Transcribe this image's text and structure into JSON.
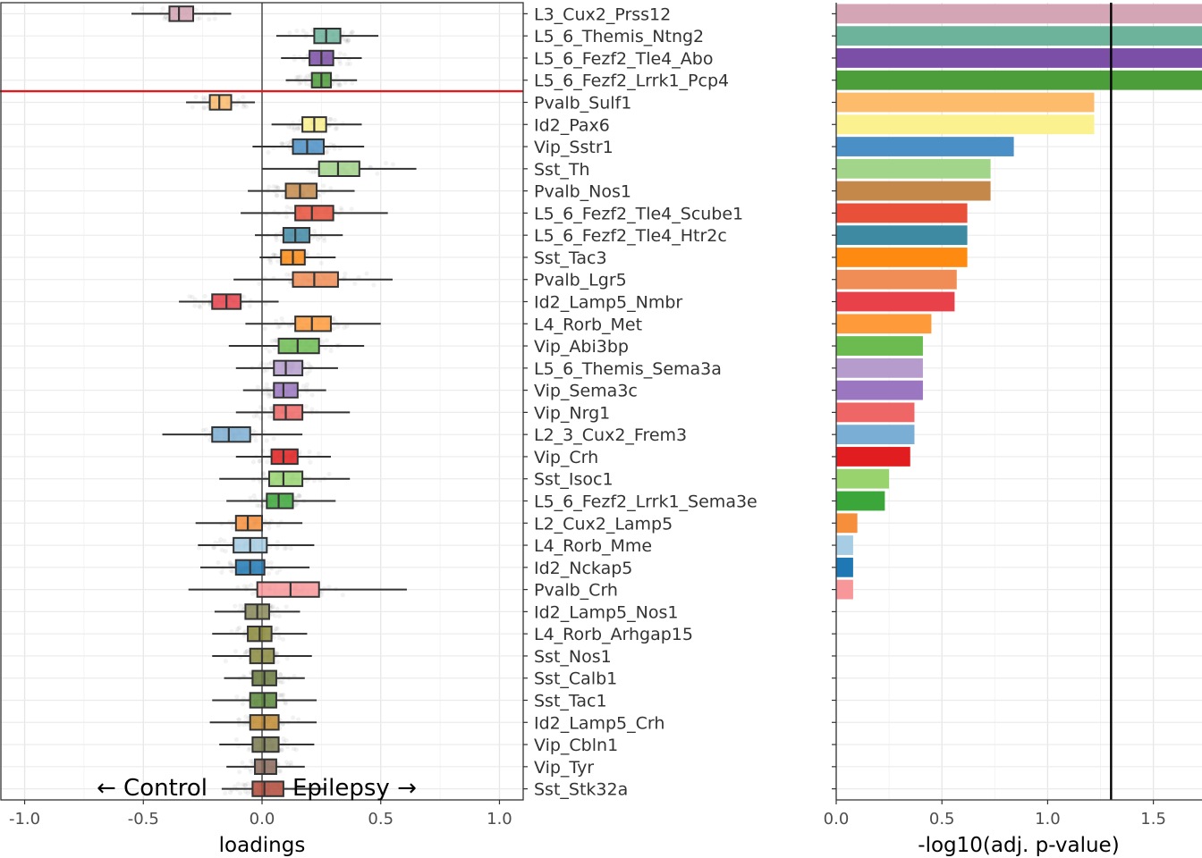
{
  "chart_data": [
    {
      "type": "boxplot",
      "xlabel": "loadings",
      "xlim": [
        -1.1,
        1.1
      ],
      "xticks": [
        -1.0,
        -0.5,
        0.0,
        0.5,
        1.0
      ],
      "xtick_labels": [
        "-1.0",
        "-0.5",
        "0.0",
        "0.5",
        "1.0"
      ],
      "grid": true,
      "annotations": {
        "left": "← Control",
        "right": "Epilepsy →"
      },
      "vline_at": 0.0,
      "hline_after_category": "L5_6_Fezf2_Lrrk1_Pcp4",
      "categories": [
        "L3_Cux2_Prss12",
        "L5_6_Themis_Ntng2",
        "L5_6_Fezf2_Tle4_Abo",
        "L5_6_Fezf2_Lrrk1_Pcp4",
        "Pvalb_Sulf1",
        "Id2_Pax6",
        "Vip_Sstr1",
        "Sst_Th",
        "Pvalb_Nos1",
        "L5_6_Fezf2_Tle4_Scube1",
        "L5_6_Fezf2_Tle4_Htr2c",
        "Sst_Tac3",
        "Pvalb_Lgr5",
        "Id2_Lamp5_Nmbr",
        "L4_Rorb_Met",
        "Vip_Abi3bp",
        "L5_6_Themis_Sema3a",
        "Vip_Sema3c",
        "Vip_Nrg1",
        "L2_3_Cux2_Frem3",
        "Vip_Crh",
        "Sst_Isoc1",
        "L5_6_Fezf2_Lrrk1_Sema3e",
        "L2_Cux2_Lamp5",
        "L4_Rorb_Mme",
        "Id2_Nckap5",
        "Pvalb_Crh",
        "Id2_Lamp5_Nos1",
        "L4_Rorb_Arhgap15",
        "Sst_Nos1",
        "Sst_Calb1",
        "Sst_Tac1",
        "Id2_Lamp5_Crh",
        "Vip_Cbln1",
        "Vip_Tyr",
        "Sst_Stk32a"
      ],
      "colors": [
        "#d4a5b4",
        "#6db39c",
        "#7b4fa6",
        "#4b9e3a",
        "#fdbb6c",
        "#fbf18e",
        "#4a8fc6",
        "#a2d48a",
        "#c4894a",
        "#e8503a",
        "#3f8aa3",
        "#ff8a12",
        "#f08c55",
        "#e8414a",
        "#fe9a3a",
        "#6cbb50",
        "#b59ccc",
        "#9a77c0",
        "#ee6666",
        "#7baed4",
        "#e21d1f",
        "#98d36e",
        "#3ba63a",
        "#f68f3c",
        "#a6cde3",
        "#1f78b4",
        "#f8979a",
        "#8a8a5a",
        "#8a8a3a",
        "#8a8a40",
        "#6a7a40",
        "#5a8a3a",
        "#c08a30",
        "#7a7a50",
        "#8a6a5a",
        "#b04a3a"
      ],
      "boxes": [
        {
          "q1": -0.39,
          "median": -0.35,
          "q3": -0.29,
          "wmin": -0.55,
          "wmax": -0.13
        },
        {
          "q1": 0.22,
          "median": 0.27,
          "q3": 0.33,
          "wmax": 0.49,
          "wmin": 0.06
        },
        {
          "q1": 0.2,
          "median": 0.25,
          "q3": 0.3,
          "wmin": 0.08,
          "wmax": 0.42
        },
        {
          "q1": 0.21,
          "median": 0.25,
          "q3": 0.29,
          "wmin": 0.1,
          "wmax": 0.4
        },
        {
          "q1": -0.22,
          "median": -0.18,
          "q3": -0.13,
          "wmin": -0.32,
          "wmax": -0.03
        },
        {
          "q1": 0.17,
          "median": 0.22,
          "q3": 0.27,
          "wmin": 0.04,
          "wmax": 0.42
        },
        {
          "q1": 0.13,
          "median": 0.19,
          "q3": 0.26,
          "wmin": -0.04,
          "wmax": 0.43
        },
        {
          "q1": 0.24,
          "median": 0.32,
          "q3": 0.41,
          "wmin": 0.0,
          "wmax": 0.65
        },
        {
          "q1": 0.1,
          "median": 0.16,
          "q3": 0.23,
          "wmin": -0.06,
          "wmax": 0.39
        },
        {
          "q1": 0.14,
          "median": 0.21,
          "q3": 0.3,
          "wmin": -0.09,
          "wmax": 0.53
        },
        {
          "q1": 0.09,
          "median": 0.14,
          "q3": 0.2,
          "wmin": -0.03,
          "wmax": 0.34
        },
        {
          "q1": 0.08,
          "median": 0.13,
          "q3": 0.18,
          "wmin": -0.01,
          "wmax": 0.31
        },
        {
          "q1": 0.13,
          "median": 0.22,
          "q3": 0.32,
          "wmin": -0.12,
          "wmax": 0.55
        },
        {
          "q1": -0.21,
          "median": -0.15,
          "q3": -0.09,
          "wmin": -0.35,
          "wmax": 0.07
        },
        {
          "q1": 0.14,
          "median": 0.21,
          "q3": 0.29,
          "wmin": -0.07,
          "wmax": 0.5
        },
        {
          "q1": 0.07,
          "median": 0.15,
          "q3": 0.24,
          "wmin": -0.14,
          "wmax": 0.43
        },
        {
          "q1": 0.05,
          "median": 0.1,
          "q3": 0.17,
          "wmin": -0.11,
          "wmax": 0.32
        },
        {
          "q1": 0.05,
          "median": 0.09,
          "q3": 0.15,
          "wmin": -0.08,
          "wmax": 0.27
        },
        {
          "q1": 0.05,
          "median": 0.1,
          "q3": 0.17,
          "wmin": -0.11,
          "wmax": 0.37
        },
        {
          "q1": -0.21,
          "median": -0.14,
          "q3": -0.05,
          "wmin": -0.42,
          "wmax": 0.17
        },
        {
          "q1": 0.04,
          "median": 0.09,
          "q3": 0.15,
          "wmin": -0.11,
          "wmax": 0.29
        },
        {
          "q1": 0.03,
          "median": 0.09,
          "q3": 0.17,
          "wmin": -0.18,
          "wmax": 0.37
        },
        {
          "q1": 0.02,
          "median": 0.07,
          "q3": 0.13,
          "wmin": -0.15,
          "wmax": 0.31
        },
        {
          "q1": -0.11,
          "median": -0.06,
          "q3": 0.0,
          "wmin": -0.28,
          "wmax": 0.17
        },
        {
          "q1": -0.12,
          "median": -0.05,
          "q3": 0.02,
          "wmin": -0.27,
          "wmax": 0.22
        },
        {
          "q1": -0.11,
          "median": -0.05,
          "q3": 0.01,
          "wmin": -0.26,
          "wmax": 0.2
        },
        {
          "q1": -0.02,
          "median": 0.12,
          "q3": 0.24,
          "wmin": -0.31,
          "wmax": 0.61
        },
        {
          "q1": -0.07,
          "median": -0.02,
          "q3": 0.03,
          "wmin": -0.2,
          "wmax": 0.16
        },
        {
          "q1": -0.06,
          "median": -0.01,
          "q3": 0.04,
          "wmin": -0.21,
          "wmax": 0.19
        },
        {
          "q1": -0.05,
          "median": 0.0,
          "q3": 0.05,
          "wmin": -0.21,
          "wmax": 0.21
        },
        {
          "q1": -0.04,
          "median": 0.01,
          "q3": 0.06,
          "wmin": -0.16,
          "wmax": 0.18
        },
        {
          "q1": -0.05,
          "median": 0.01,
          "q3": 0.06,
          "wmin": -0.21,
          "wmax": 0.23
        },
        {
          "q1": -0.05,
          "median": 0.01,
          "q3": 0.07,
          "wmin": -0.22,
          "wmax": 0.23
        },
        {
          "q1": -0.04,
          "median": 0.01,
          "q3": 0.07,
          "wmin": -0.18,
          "wmax": 0.22
        },
        {
          "q1": -0.03,
          "median": 0.01,
          "q3": 0.06,
          "wmin": -0.15,
          "wmax": 0.18
        },
        {
          "q1": -0.04,
          "median": 0.01,
          "q3": 0.09,
          "wmin": -0.17,
          "wmax": 0.27
        }
      ]
    },
    {
      "type": "bar",
      "orientation": "horizontal",
      "xlabel": "-log10(adj. p-value)",
      "xlim": [
        0.0,
        1.73
      ],
      "xticks": [
        0.0,
        0.5,
        1.0,
        1.5
      ],
      "xtick_labels": [
        "0.0",
        "0.5",
        "1.0",
        "1.5"
      ],
      "grid": true,
      "threshold_line": 1.3,
      "values": [
        1.73,
        1.73,
        1.73,
        1.73,
        1.22,
        1.22,
        0.84,
        0.73,
        0.73,
        0.62,
        0.62,
        0.62,
        0.57,
        0.56,
        0.45,
        0.41,
        0.41,
        0.41,
        0.37,
        0.37,
        0.35,
        0.25,
        0.23,
        0.1,
        0.08,
        0.08,
        0.08,
        0,
        0,
        0,
        0,
        0,
        0,
        0,
        0,
        0
      ]
    }
  ]
}
